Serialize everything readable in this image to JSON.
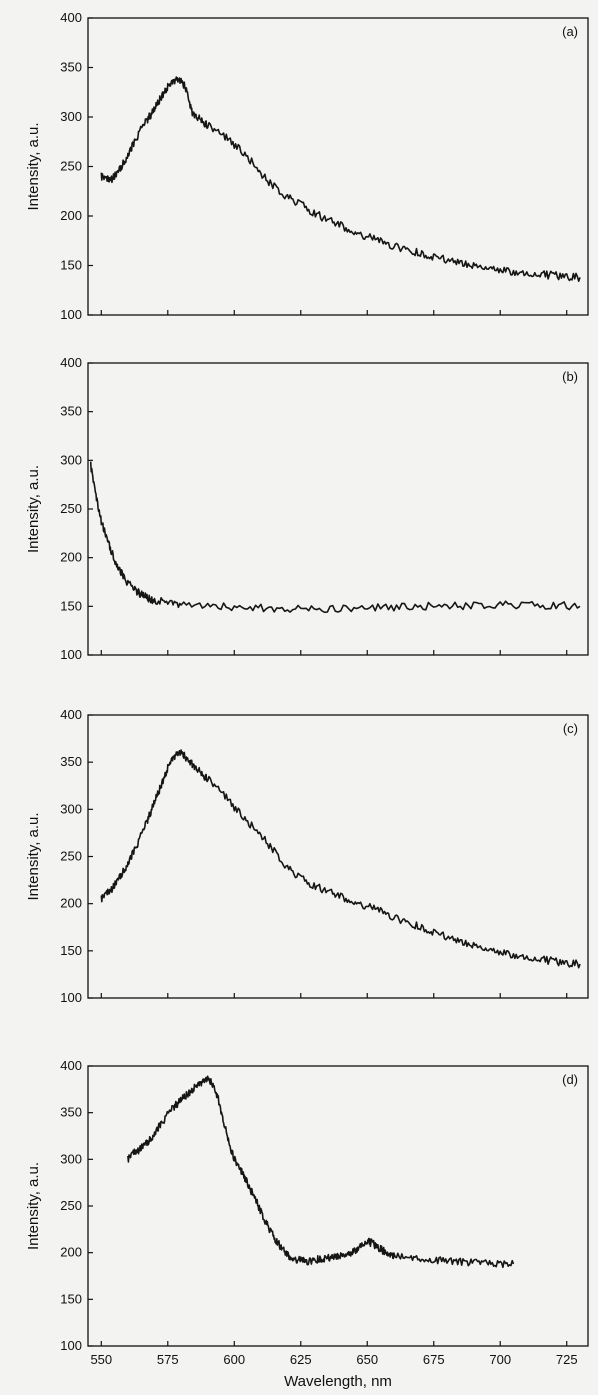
{
  "chart_data": [
    {
      "type": "line",
      "panel_label": "(a)",
      "ylabel": "Intensity, a.u.",
      "xlabel": "",
      "xlim": [
        545,
        733
      ],
      "ylim": [
        100,
        400
      ],
      "yticks": [
        100,
        150,
        200,
        250,
        300,
        350,
        400
      ],
      "xticks": [
        550,
        575,
        600,
        625,
        650,
        675,
        700,
        725
      ],
      "series": [
        {
          "x": [
            550,
            552,
            554,
            556,
            558,
            560,
            562,
            564,
            566,
            568,
            570,
            572,
            574,
            576,
            578,
            580,
            582,
            584,
            586,
            588,
            590,
            595,
            600,
            605,
            610,
            615,
            620,
            625,
            630,
            635,
            640,
            645,
            650,
            655,
            660,
            665,
            670,
            675,
            680,
            685,
            690,
            695,
            700,
            705,
            710,
            715,
            720,
            725,
            730
          ],
          "y": [
            240,
            236,
            238,
            243,
            252,
            262,
            272,
            283,
            292,
            300,
            308,
            318,
            327,
            333,
            338,
            336,
            328,
            305,
            300,
            296,
            291,
            283,
            272,
            260,
            242,
            230,
            219,
            212,
            203,
            196,
            190,
            184,
            179,
            174,
            170,
            166,
            162,
            159,
            156,
            153,
            150,
            148,
            146,
            144,
            142,
            141,
            140,
            139,
            138
          ]
        }
      ]
    },
    {
      "type": "line",
      "panel_label": "(b)",
      "ylabel": "Intensity, a.u.",
      "xlabel": "",
      "xlim": [
        545,
        733
      ],
      "ylim": [
        100,
        400
      ],
      "yticks": [
        100,
        150,
        200,
        250,
        300,
        350,
        400
      ],
      "xticks": [
        550,
        575,
        600,
        625,
        650,
        675,
        700,
        725
      ],
      "series": [
        {
          "x": [
            546,
            548,
            550,
            552,
            554,
            556,
            558,
            560,
            562,
            564,
            566,
            568,
            570,
            575,
            580,
            590,
            600,
            610,
            620,
            630,
            640,
            650,
            660,
            670,
            680,
            690,
            700,
            710,
            720,
            730
          ],
          "y": [
            295,
            262,
            238,
            220,
            205,
            192,
            182,
            174,
            168,
            164,
            161,
            158,
            156,
            154,
            152,
            150,
            149,
            148,
            147,
            148,
            147,
            148,
            149,
            150,
            150,
            151,
            152,
            151,
            151,
            150
          ]
        }
      ]
    },
    {
      "type": "line",
      "panel_label": "(c)",
      "ylabel": "Intensity, a.u.",
      "xlabel": "",
      "xlim": [
        545,
        733
      ],
      "ylim": [
        100,
        400
      ],
      "yticks": [
        100,
        150,
        200,
        250,
        300,
        350,
        400
      ],
      "xticks": [
        550,
        575,
        600,
        625,
        650,
        675,
        700,
        725
      ],
      "series": [
        {
          "x": [
            550,
            552,
            554,
            556,
            558,
            560,
            562,
            564,
            566,
            568,
            570,
            572,
            574,
            576,
            578,
            580,
            582,
            584,
            586,
            588,
            590,
            595,
            600,
            605,
            610,
            615,
            620,
            625,
            630,
            635,
            640,
            645,
            650,
            655,
            660,
            665,
            670,
            675,
            680,
            685,
            690,
            695,
            700,
            705,
            710,
            715,
            720,
            725,
            730
          ],
          "y": [
            205,
            210,
            216,
            224,
            233,
            243,
            254,
            266,
            279,
            293,
            308,
            322,
            337,
            350,
            358,
            360,
            354,
            348,
            343,
            337,
            332,
            319,
            302,
            287,
            272,
            256,
            238,
            227,
            219,
            213,
            207,
            202,
            197,
            192,
            186,
            180,
            175,
            170,
            165,
            160,
            156,
            152,
            149,
            146,
            143,
            141,
            139,
            137,
            136
          ]
        }
      ]
    },
    {
      "type": "line",
      "panel_label": "(d)",
      "ylabel": "Intensity, a.u.",
      "xlabel": "Wavelength, nm",
      "xlim": [
        545,
        733
      ],
      "ylim": [
        100,
        400
      ],
      "yticks": [
        100,
        150,
        200,
        250,
        300,
        350,
        400
      ],
      "xticks": [
        550,
        575,
        600,
        625,
        650,
        675,
        700,
        725
      ],
      "series": [
        {
          "x": [
            560,
            562,
            564,
            566,
            568,
            570,
            572,
            574,
            576,
            578,
            580,
            582,
            584,
            586,
            588,
            590,
            592,
            594,
            596,
            598,
            600,
            602,
            604,
            606,
            608,
            610,
            612,
            614,
            616,
            618,
            620,
            622,
            624,
            626,
            628,
            630,
            632,
            634,
            636,
            638,
            640,
            642,
            644,
            646,
            648,
            650,
            652,
            654,
            656,
            658,
            660,
            665,
            670,
            675,
            680,
            685,
            690,
            695,
            700,
            705
          ],
          "y": [
            300,
            306,
            310,
            315,
            320,
            328,
            336,
            344,
            352,
            358,
            364,
            369,
            374,
            379,
            383,
            386,
            380,
            364,
            340,
            318,
            300,
            290,
            280,
            268,
            257,
            244,
            232,
            221,
            212,
            204,
            197,
            194,
            192,
            191,
            191,
            192,
            193,
            194,
            195,
            196,
            197,
            198,
            200,
            204,
            209,
            212,
            210,
            206,
            202,
            198,
            196,
            194,
            193,
            192,
            191,
            190,
            189,
            189,
            188,
            188
          ]
        }
      ]
    }
  ]
}
